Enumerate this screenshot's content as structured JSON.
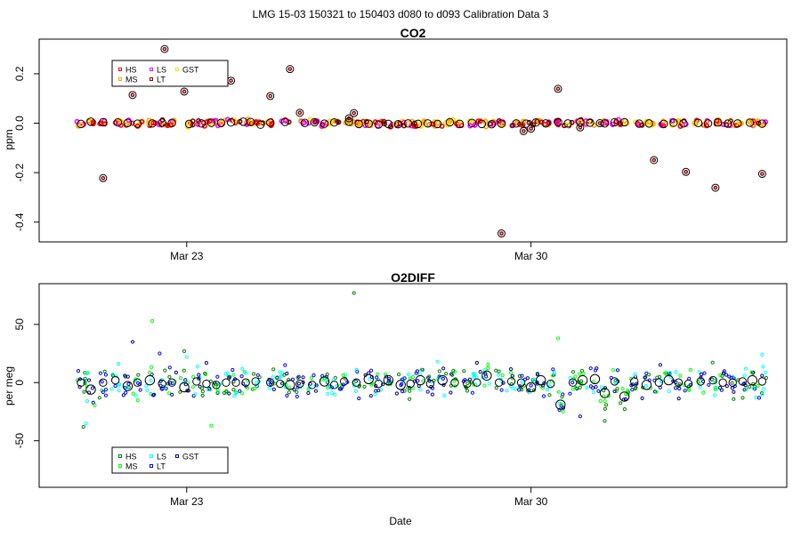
{
  "page_title": "LMG   15-03    150321 to 150403    d080 to d093   Calibration Data 3",
  "xlabel": "Date",
  "chart_data": [
    {
      "type": "scatter",
      "title": "CO2",
      "ylabel": "ppm",
      "xlim": [
        20.0,
        35.2
      ],
      "ylim": [
        -0.48,
        0.34
      ],
      "x_ticks": [
        {
          "value": 23,
          "label": "Mar 23"
        },
        {
          "value": 30,
          "label": "Mar 30"
        }
      ],
      "y_ticks": [
        {
          "value": 0.2,
          "label": "0.2"
        },
        {
          "value": 0.0,
          "label": "0.0"
        },
        {
          "value": -0.2,
          "label": "-0.2"
        },
        {
          "value": -0.4,
          "label": "-0.4"
        }
      ],
      "legend": {
        "position": "top-left",
        "entries": [
          {
            "name": "HS",
            "color": "#ff0000"
          },
          {
            "name": "LS",
            "color": "#ff00ff"
          },
          {
            "name": "GST",
            "color": "#ffd700"
          },
          {
            "name": "MS",
            "color": "#ffa500"
          },
          {
            "name": "LT",
            "color": "#8b0000"
          }
        ]
      },
      "means": {
        "x": [
          20.85,
          21.05,
          21.3,
          21.6,
          21.8,
          22.0,
          22.3,
          22.5,
          22.7,
          23.05,
          23.3,
          23.5,
          23.7,
          23.9,
          24.15,
          24.3,
          24.5,
          24.7,
          25.0,
          25.4,
          25.6,
          25.8,
          26.0,
          26.3,
          26.5,
          26.7,
          26.9,
          27.1,
          27.3,
          27.5,
          27.7,
          27.9,
          28.1,
          28.35,
          28.55,
          28.8,
          29.0,
          29.2,
          29.4,
          29.7,
          29.9,
          30.1,
          30.3,
          30.55,
          30.75,
          31.0,
          31.2,
          31.5,
          31.7,
          31.9,
          32.2,
          32.4,
          32.7,
          32.9,
          33.1,
          33.4,
          33.6,
          33.8,
          34.0,
          34.2,
          34.45,
          34.7
        ],
        "y": [
          -0.003,
          0.006,
          0.004,
          0.003,
          0.001,
          -0.002,
          -0.001,
          0.002,
          0.001,
          -0.003,
          -0.001,
          0.002,
          0.001,
          0.003,
          0.006,
          0.005,
          -0.006,
          0.002,
          0.005,
          0.001,
          0.004,
          -0.002,
          0.003,
          0.006,
          -0.003,
          -0.002,
          -0.005,
          -0.003,
          -0.004,
          -0.001,
          -0.003,
          -0.001,
          -0.003,
          0.004,
          -0.003,
          0.001,
          -0.003,
          -0.004,
          -0.002,
          -0.001,
          -0.002,
          0.003,
          -0.001,
          0.005,
          -0.001,
          0.004,
          0.002,
          -0.001,
          0.004,
          0.004,
          -0.002,
          -0.001,
          -0.003,
          0.002,
          -0.001,
          0.001,
          -0.001,
          0.003,
          -0.002,
          -0.001,
          0.002,
          -0.002
        ]
      },
      "outliers": {
        "x": [
          21.3,
          21.9,
          22.55,
          22.95,
          23.9,
          24.7,
          25.1,
          25.3,
          26.3,
          26.4,
          29.4,
          29.85,
          30.0,
          30.55,
          31.0,
          31.4,
          32.5,
          33.15,
          33.75,
          34.7
        ],
        "y": [
          -0.222,
          0.114,
          0.3,
          0.128,
          0.172,
          0.11,
          0.219,
          0.042,
          0.02,
          0.041,
          -0.446,
          -0.032,
          -0.022,
          0.139,
          -0.017,
          0.0,
          -0.149,
          -0.197,
          -0.261,
          -0.205
        ]
      }
    },
    {
      "type": "scatter",
      "title": "O2DIFF",
      "ylabel": "per meg",
      "xlim": [
        20.0,
        35.2
      ],
      "ylim": [
        -90,
        85
      ],
      "x_ticks": [
        {
          "value": 23,
          "label": "Mar 23"
        },
        {
          "value": 30,
          "label": "Mar 30"
        }
      ],
      "y_ticks": [
        {
          "value": 50,
          "label": "50"
        },
        {
          "value": 0,
          "label": "0"
        },
        {
          "value": -50,
          "label": "-50"
        }
      ],
      "legend": {
        "position": "bottom-left",
        "entries": [
          {
            "name": "HS",
            "color": "#008000"
          },
          {
            "name": "LS",
            "color": "#00ffff"
          },
          {
            "name": "GST",
            "color": "#00008b"
          },
          {
            "name": "MS",
            "color": "#00ff00"
          },
          {
            "name": "LT",
            "color": "#0000ff"
          }
        ]
      },
      "means": {
        "x": [
          20.85,
          21.05,
          21.3,
          21.55,
          21.8,
          22.0,
          22.25,
          22.5,
          22.7,
          22.95,
          23.2,
          23.4,
          23.6,
          23.8,
          24.0,
          24.2,
          24.4,
          24.7,
          24.9,
          25.1,
          25.3,
          25.55,
          25.8,
          26.0,
          26.2,
          26.45,
          26.7,
          26.9,
          27.1,
          27.35,
          27.55,
          27.75,
          27.95,
          28.2,
          28.45,
          28.7,
          28.9,
          29.1,
          29.35,
          29.6,
          29.8,
          30.0,
          30.2,
          30.4,
          30.6,
          30.85,
          31.05,
          31.3,
          31.5,
          31.7,
          31.9,
          32.1,
          32.35,
          32.6,
          32.8,
          33.0,
          33.2,
          33.45,
          33.7,
          33.9,
          34.1,
          34.3,
          34.5,
          34.7
        ],
        "y": [
          0,
          -6,
          0,
          2,
          -3,
          0,
          2,
          -1,
          0,
          -4,
          1,
          -1,
          -2,
          0,
          0,
          0,
          1,
          0,
          -1,
          -2,
          -1,
          -2,
          1,
          -2,
          1,
          0,
          3,
          -1,
          2,
          -2,
          -1,
          2,
          -1,
          2,
          0,
          -1,
          0,
          6,
          0,
          1,
          0,
          -4,
          2,
          -1,
          -19,
          0,
          2,
          3,
          -9,
          1,
          -12,
          1,
          -2,
          0,
          2,
          0,
          -1,
          1,
          2,
          0,
          0,
          1,
          2,
          1
        ],
        "large": [
          0,
          1,
          0,
          0,
          1,
          0,
          1,
          0,
          0,
          1,
          0,
          0,
          0,
          0,
          0,
          0,
          0,
          0,
          0,
          1,
          0,
          0,
          1,
          0,
          0,
          0,
          1,
          0,
          1,
          1,
          0,
          1,
          0,
          1,
          0,
          0,
          0,
          1,
          0,
          0,
          0,
          1,
          1,
          0,
          1,
          0,
          1,
          1,
          1,
          0,
          1,
          0,
          1,
          0,
          1,
          0,
          0,
          0,
          0,
          0,
          0,
          0,
          1,
          0
        ]
      },
      "outliers": {
        "x": [
          20.9,
          20.95,
          21.9,
          22.3,
          22.45,
          22.95,
          23.0,
          23.4,
          23.5,
          25.0,
          26.4,
          28.1,
          28.9,
          30.55,
          31.0,
          31.5,
          34.7
        ],
        "y": [
          -38,
          -35,
          35,
          53,
          25,
          27,
          22,
          17,
          -37,
          15,
          77,
          18,
          17,
          38,
          -29,
          -33,
          24
        ]
      }
    }
  ]
}
